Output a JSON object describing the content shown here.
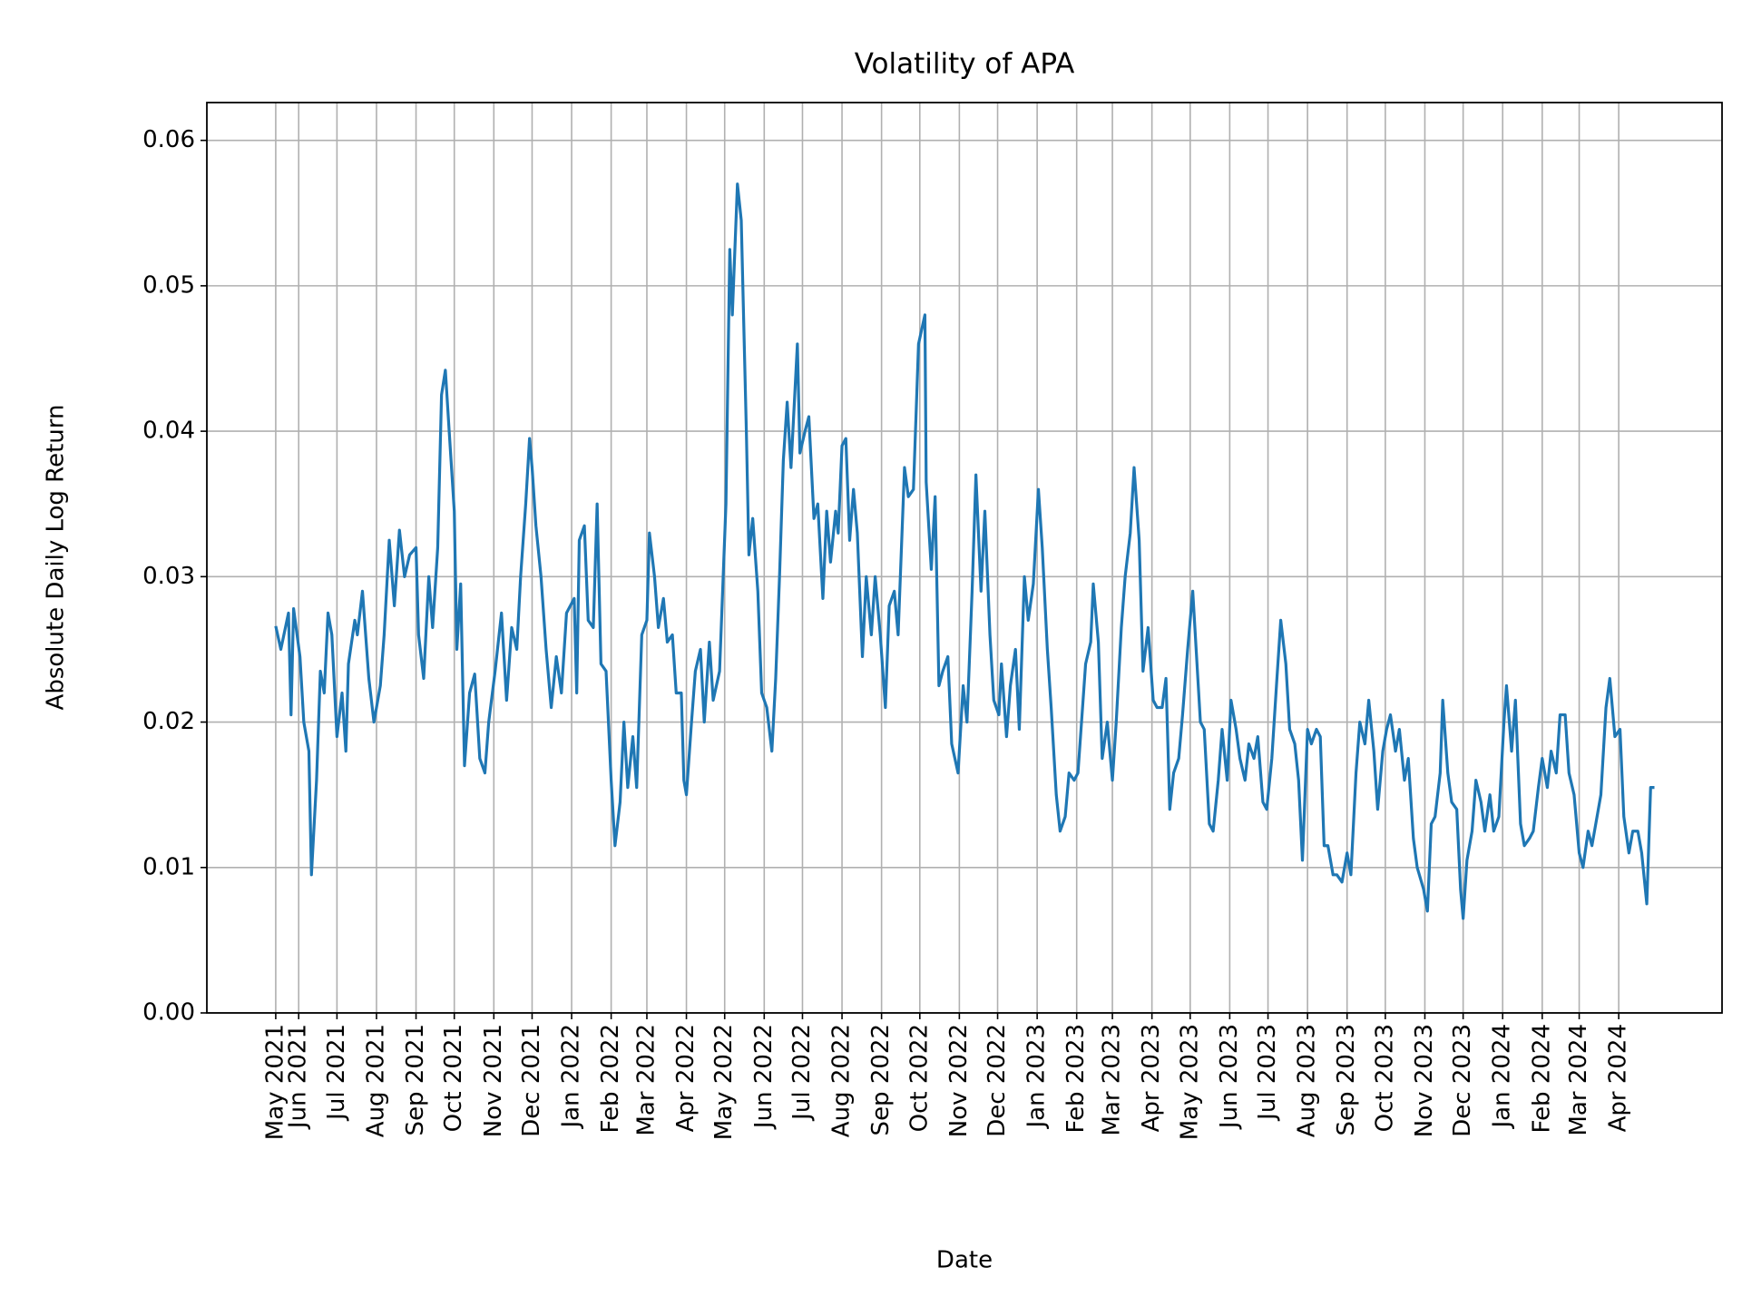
{
  "chart_data": {
    "type": "line",
    "title": "Volatility of APA",
    "xlabel": "Date",
    "ylabel": "Absolute Daily Log Return",
    "color": "#1f77b4",
    "grid": true,
    "xlim": [
      "2021-03-21",
      "2024-06-21"
    ],
    "ylim": [
      0,
      0.0626
    ],
    "yticks": [
      {
        "value": 0,
        "label": "0.00"
      },
      0.01,
      0.02,
      0.03,
      0.04,
      0.05,
      0.06
    ],
    "xticks": [
      {
        "value": "2021-05-14",
        "label": "May 2021"
      },
      {
        "value": "2021-06-01",
        "label": "Jun 2021"
      },
      {
        "value": "2021-07-01",
        "label": "Jul 2021"
      },
      {
        "value": "2021-08-01",
        "label": "Aug 2021"
      },
      {
        "value": "2021-09-01",
        "label": "Sep 2021"
      },
      {
        "value": "2021-10-01",
        "label": "Oct 2021"
      },
      {
        "value": "2021-11-01",
        "label": "Nov 2021"
      },
      {
        "value": "2021-12-01",
        "label": "Dec 2021"
      },
      {
        "value": "2022-01-01",
        "label": "Jan 2022"
      },
      {
        "value": "2022-02-01",
        "label": "Feb 2022"
      },
      {
        "value": "2022-03-01",
        "label": "Mar 2022"
      },
      {
        "value": "2022-04-01",
        "label": "Apr 2022"
      },
      {
        "value": "2022-05-01",
        "label": "May 2022"
      },
      {
        "value": "2022-06-01",
        "label": "Jun 2022"
      },
      {
        "value": "2022-07-01",
        "label": "Jul 2022"
      },
      {
        "value": "2022-08-01",
        "label": "Aug 2022"
      },
      {
        "value": "2022-09-01",
        "label": "Sep 2022"
      },
      {
        "value": "2022-10-01",
        "label": "Oct 2022"
      },
      {
        "value": "2022-11-01",
        "label": "Nov 2022"
      },
      {
        "value": "2022-12-01",
        "label": "Dec 2022"
      },
      {
        "value": "2023-01-01",
        "label": "Jan 2023"
      },
      {
        "value": "2023-02-01",
        "label": "Feb 2023"
      },
      {
        "value": "2023-03-01",
        "label": "Mar 2023"
      },
      {
        "value": "2023-04-01",
        "label": "Apr 2023"
      },
      {
        "value": "2023-05-01",
        "label": "May 2023"
      },
      {
        "value": "2023-06-01",
        "label": "Jun 2023"
      },
      {
        "value": "2023-07-01",
        "label": "Jul 2023"
      },
      {
        "value": "2023-08-01",
        "label": "Aug 2023"
      },
      {
        "value": "2023-09-01",
        "label": "Sep 2023"
      },
      {
        "value": "2023-10-01",
        "label": "Oct 2023"
      },
      {
        "value": "2023-11-01",
        "label": "Nov 2023"
      },
      {
        "value": "2023-12-01",
        "label": "Dec 2023"
      },
      {
        "value": "2024-01-01",
        "label": "Jan 2024"
      },
      {
        "value": "2024-02-01",
        "label": "Feb 2024"
      },
      {
        "value": "2024-03-01",
        "label": "Mar 2024"
      },
      {
        "value": "2024-04-01",
        "label": "Apr 2024"
      }
    ],
    "x": [
      "2021-05-14",
      "2021-05-18",
      "2021-05-24",
      "2021-05-26",
      "2021-05-28",
      "2021-06-02",
      "2021-06-05",
      "2021-06-09",
      "2021-06-11",
      "2021-06-15",
      "2021-06-18",
      "2021-06-21",
      "2021-06-24",
      "2021-06-27",
      "2021-07-01",
      "2021-07-05",
      "2021-07-08",
      "2021-07-10",
      "2021-07-15",
      "2021-07-17",
      "2021-07-21",
      "2021-07-26",
      "2021-07-30",
      "2021-08-04",
      "2021-08-07",
      "2021-08-11",
      "2021-08-15",
      "2021-08-19",
      "2021-08-23",
      "2021-08-27",
      "2021-09-01",
      "2021-09-03",
      "2021-09-07",
      "2021-09-11",
      "2021-09-14",
      "2021-09-18",
      "2021-09-21",
      "2021-09-24",
      "2021-09-27",
      "2021-10-01",
      "2021-10-03",
      "2021-10-06",
      "2021-10-09",
      "2021-10-13",
      "2021-10-17",
      "2021-10-21",
      "2021-10-25",
      "2021-10-28",
      "2021-11-02",
      "2021-11-07",
      "2021-11-11",
      "2021-11-15",
      "2021-11-19",
      "2021-11-22",
      "2021-11-26",
      "2021-11-29",
      "2021-12-01",
      "2021-12-04",
      "2021-12-08",
      "2021-12-12",
      "2021-12-16",
      "2021-12-20",
      "2021-12-24",
      "2021-12-28",
      "2022-01-03",
      "2022-01-05",
      "2022-01-07",
      "2022-01-11",
      "2022-01-14",
      "2022-01-18",
      "2022-01-21",
      "2022-01-24",
      "2022-01-28",
      "2022-02-01",
      "2022-02-04",
      "2022-02-08",
      "2022-02-11",
      "2022-02-14",
      "2022-02-18",
      "2022-02-21",
      "2022-02-25",
      "2022-03-01",
      "2022-03-03",
      "2022-03-07",
      "2022-03-10",
      "2022-03-14",
      "2022-03-17",
      "2022-03-21",
      "2022-03-24",
      "2022-03-28",
      "2022-03-30",
      "2022-04-01",
      "2022-04-05",
      "2022-04-08",
      "2022-04-12",
      "2022-04-15",
      "2022-04-19",
      "2022-04-22",
      "2022-04-27",
      "2022-05-02",
      "2022-05-05",
      "2022-05-07",
      "2022-05-11",
      "2022-05-14",
      "2022-05-18",
      "2022-05-20",
      "2022-05-23",
      "2022-05-27",
      "2022-05-30",
      "2022-06-03",
      "2022-06-07",
      "2022-06-10",
      "2022-06-13",
      "2022-06-16",
      "2022-06-19",
      "2022-06-22",
      "2022-06-27",
      "2022-06-29",
      "2022-07-03",
      "2022-07-06",
      "2022-07-10",
      "2022-07-13",
      "2022-07-17",
      "2022-07-20",
      "2022-07-23",
      "2022-07-27",
      "2022-07-29",
      "2022-08-01",
      "2022-08-04",
      "2022-08-07",
      "2022-08-10",
      "2022-08-13",
      "2022-08-17",
      "2022-08-20",
      "2022-08-24",
      "2022-08-27",
      "2022-08-31",
      "2022-09-04",
      "2022-09-07",
      "2022-09-11",
      "2022-09-14",
      "2022-09-19",
      "2022-09-22",
      "2022-09-26",
      "2022-09-30",
      "2022-10-05",
      "2022-10-06",
      "2022-10-10",
      "2022-10-13",
      "2022-10-16",
      "2022-10-19",
      "2022-10-23",
      "2022-10-26",
      "2022-10-31",
      "2022-11-04",
      "2022-11-07",
      "2022-11-11",
      "2022-11-14",
      "2022-11-18",
      "2022-11-21",
      "2022-11-25",
      "2022-11-28",
      "2022-12-02",
      "2022-12-04",
      "2022-12-08",
      "2022-12-11",
      "2022-12-15",
      "2022-12-18",
      "2022-12-22",
      "2022-12-25",
      "2022-12-29",
      "2023-01-02",
      "2023-01-05",
      "2023-01-09",
      "2023-01-12",
      "2023-01-16",
      "2023-01-19",
      "2023-01-23",
      "2023-01-26",
      "2023-01-30",
      "2023-02-02",
      "2023-02-06",
      "2023-02-08",
      "2023-02-12",
      "2023-02-14",
      "2023-02-18",
      "2023-02-21",
      "2023-02-25",
      "2023-03-01",
      "2023-03-04",
      "2023-03-08",
      "2023-03-11",
      "2023-03-15",
      "2023-03-18",
      "2023-03-22",
      "2023-03-25",
      "2023-03-29",
      "2023-04-02",
      "2023-04-05",
      "2023-04-09",
      "2023-04-12",
      "2023-04-15",
      "2023-04-18",
      "2023-04-22",
      "2023-04-25",
      "2023-04-29",
      "2023-05-03",
      "2023-05-05",
      "2023-05-09",
      "2023-05-12",
      "2023-05-16",
      "2023-05-19",
      "2023-05-23",
      "2023-05-26",
      "2023-05-30",
      "2023-06-02",
      "2023-06-06",
      "2023-06-09",
      "2023-06-13",
      "2023-06-16",
      "2023-06-20",
      "2023-06-23",
      "2023-06-27",
      "2023-06-30",
      "2023-07-04",
      "2023-07-08",
      "2023-07-11",
      "2023-07-15",
      "2023-07-18",
      "2023-07-22",
      "2023-07-25",
      "2023-07-28",
      "2023-08-01",
      "2023-08-04",
      "2023-08-08",
      "2023-08-11",
      "2023-08-14",
      "2023-08-17",
      "2023-08-21",
      "2023-08-24",
      "2023-08-28",
      "2023-09-01",
      "2023-09-04",
      "2023-09-08",
      "2023-09-11",
      "2023-09-15",
      "2023-09-18",
      "2023-09-22",
      "2023-09-25",
      "2023-09-29",
      "2023-10-02",
      "2023-10-05",
      "2023-10-09",
      "2023-10-12",
      "2023-10-16",
      "2023-10-19",
      "2023-10-23",
      "2023-10-26",
      "2023-10-31",
      "2023-11-03",
      "2023-11-06",
      "2023-11-09",
      "2023-11-13",
      "2023-11-15",
      "2023-11-19",
      "2023-11-22",
      "2023-11-26",
      "2023-11-29",
      "2023-12-01",
      "2023-12-04",
      "2023-12-08",
      "2023-12-11",
      "2023-12-15",
      "2023-12-18",
      "2023-12-22",
      "2023-12-25",
      "2023-12-29",
      "2024-01-02",
      "2024-01-04",
      "2024-01-08",
      "2024-01-11",
      "2024-01-15",
      "2024-01-18",
      "2024-01-22",
      "2024-01-25",
      "2024-01-29",
      "2024-02-01",
      "2024-02-05",
      "2024-02-08",
      "2024-02-12",
      "2024-02-15",
      "2024-02-19",
      "2024-02-22",
      "2024-02-26",
      "2024-03-01",
      "2024-03-04",
      "2024-03-08",
      "2024-03-11",
      "2024-03-15",
      "2024-03-18",
      "2024-03-22",
      "2024-03-25",
      "2024-03-29",
      "2024-04-02",
      "2024-04-05",
      "2024-04-09",
      "2024-04-12",
      "2024-04-16",
      "2024-04-19",
      "2024-04-23",
      "2024-04-26",
      "2024-04-29"
    ],
    "values": [
      0.0266,
      0.025,
      0.0275,
      0.0205,
      0.0278,
      0.0245,
      0.02,
      0.018,
      0.0095,
      0.016,
      0.0235,
      0.022,
      0.0275,
      0.026,
      0.019,
      0.022,
      0.018,
      0.024,
      0.027,
      0.026,
      0.029,
      0.023,
      0.02,
      0.0225,
      0.026,
      0.0325,
      0.028,
      0.0332,
      0.03,
      0.0315,
      0.032,
      0.026,
      0.023,
      0.03,
      0.0265,
      0.032,
      0.0425,
      0.0442,
      0.04,
      0.0345,
      0.025,
      0.0295,
      0.017,
      0.022,
      0.0233,
      0.0175,
      0.0165,
      0.02,
      0.0235,
      0.0275,
      0.0215,
      0.0265,
      0.025,
      0.03,
      0.035,
      0.0395,
      0.0375,
      0.0335,
      0.03,
      0.025,
      0.021,
      0.0245,
      0.022,
      0.0275,
      0.0285,
      0.022,
      0.0325,
      0.0335,
      0.027,
      0.0265,
      0.035,
      0.024,
      0.0235,
      0.016,
      0.0115,
      0.0145,
      0.02,
      0.0155,
      0.019,
      0.0155,
      0.026,
      0.027,
      0.033,
      0.03,
      0.0265,
      0.0285,
      0.0255,
      0.026,
      0.022,
      0.022,
      0.016,
      0.015,
      0.02,
      0.0235,
      0.025,
      0.02,
      0.0255,
      0.0215,
      0.0235,
      0.035,
      0.0525,
      0.048,
      0.057,
      0.0545,
      0.04,
      0.0315,
      0.034,
      0.029,
      0.022,
      0.021,
      0.018,
      0.023,
      0.03,
      0.038,
      0.042,
      0.0375,
      0.046,
      0.0385,
      0.04,
      0.041,
      0.034,
      0.035,
      0.0285,
      0.0345,
      0.031,
      0.0345,
      0.033,
      0.039,
      0.0395,
      0.0325,
      0.036,
      0.033,
      0.0245,
      0.03,
      0.026,
      0.03,
      0.026,
      0.021,
      0.028,
      0.029,
      0.026,
      0.0375,
      0.0355,
      0.036,
      0.046,
      0.048,
      0.0365,
      0.0305,
      0.0355,
      0.0225,
      0.0235,
      0.0245,
      0.0185,
      0.0165,
      0.0225,
      0.02,
      0.029,
      0.037,
      0.029,
      0.0345,
      0.026,
      0.0215,
      0.0205,
      0.024,
      0.019,
      0.0225,
      0.025,
      0.0195,
      0.03,
      0.027,
      0.0295,
      0.036,
      0.032,
      0.025,
      0.021,
      0.015,
      0.0125,
      0.0135,
      0.0165,
      0.016,
      0.0165,
      0.0215,
      0.024,
      0.0255,
      0.0295,
      0.0255,
      0.0175,
      0.02,
      0.016,
      0.02,
      0.0265,
      0.03,
      0.033,
      0.0375,
      0.0325,
      0.0235,
      0.0265,
      0.0215,
      0.021,
      0.021,
      0.023,
      0.014,
      0.0165,
      0.0175,
      0.0205,
      0.025,
      0.029,
      0.026,
      0.02,
      0.0195,
      0.013,
      0.0125,
      0.016,
      0.0195,
      0.016,
      0.0215,
      0.0195,
      0.0175,
      0.016,
      0.0185,
      0.0175,
      0.019,
      0.0145,
      0.014,
      0.0175,
      0.023,
      0.027,
      0.024,
      0.0195,
      0.0185,
      0.016,
      0.0105,
      0.0195,
      0.0185,
      0.0195,
      0.019,
      0.0115,
      0.0115,
      0.0095,
      0.0095,
      0.009,
      0.011,
      0.0095,
      0.0165,
      0.02,
      0.0185,
      0.0215,
      0.018,
      0.014,
      0.018,
      0.0195,
      0.0205,
      0.018,
      0.0195,
      0.016,
      0.0175,
      0.012,
      0.01,
      0.0085,
      0.007,
      0.013,
      0.0135,
      0.0165,
      0.0215,
      0.0165,
      0.0145,
      0.014,
      0.0085,
      0.0065,
      0.0105,
      0.0125,
      0.016,
      0.0145,
      0.0125,
      0.015,
      0.0125,
      0.0135,
      0.02,
      0.0225,
      0.018,
      0.0215,
      0.013,
      0.0115,
      0.012,
      0.0125,
      0.0155,
      0.0175,
      0.0155,
      0.018,
      0.0165,
      0.0205,
      0.0205,
      0.0165,
      0.015,
      0.011,
      0.01,
      0.0125,
      0.0115,
      0.0135,
      0.015,
      0.021,
      0.023,
      0.019,
      0.0195,
      0.0135,
      0.011,
      0.0125,
      0.0125,
      0.011,
      0.0075,
      0.0155,
      0.0155
    ]
  }
}
